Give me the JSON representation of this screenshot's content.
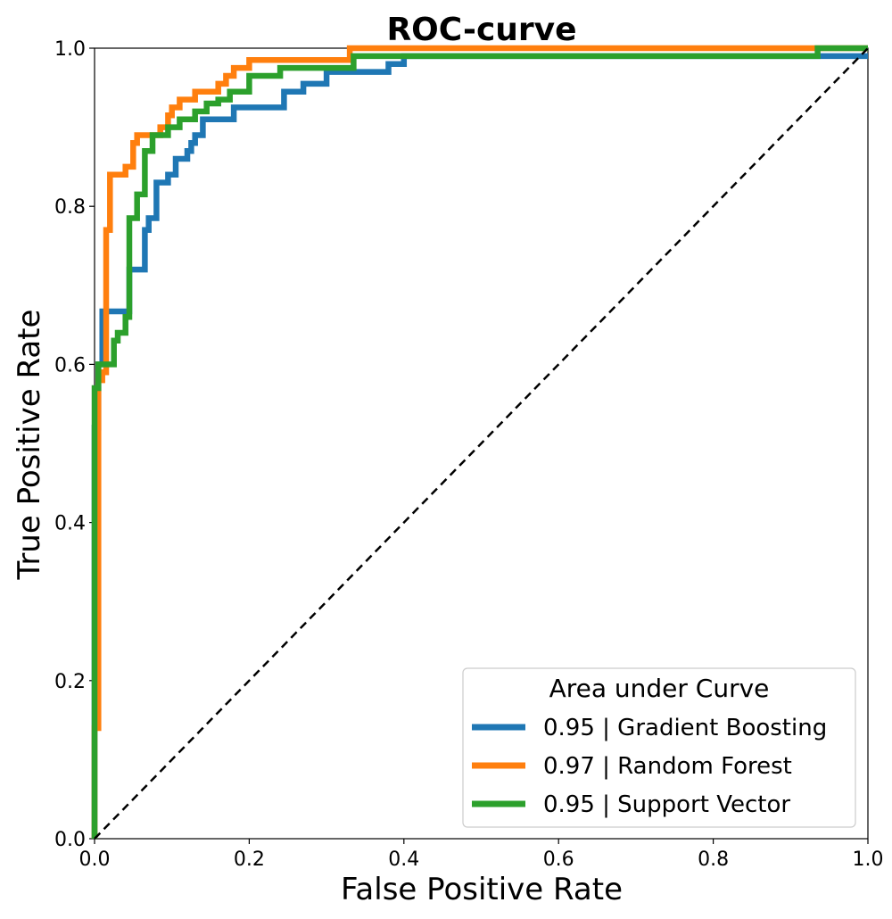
{
  "chart_data": {
    "type": "line",
    "title": "ROC-curve",
    "xlabel": "False Positive Rate",
    "ylabel": "True Positive Rate",
    "xlim": [
      0.0,
      1.0
    ],
    "ylim": [
      0.0,
      1.0
    ],
    "xticks": [
      "0.0",
      "0.2",
      "0.4",
      "0.6",
      "0.8",
      "1.0"
    ],
    "yticks": [
      "0.0",
      "0.2",
      "0.4",
      "0.6",
      "0.8",
      "1.0"
    ],
    "grid": false,
    "legend": {
      "title": "Area under Curve",
      "placement": "lower-right"
    },
    "series": [
      {
        "name": "0.95 | Gradient Boosting",
        "color": "#1f77b4",
        "x": [
          0.0,
          0.0,
          0.005,
          0.005,
          0.01,
          0.01,
          0.045,
          0.045,
          0.065,
          0.065,
          0.07,
          0.07,
          0.08,
          0.08,
          0.095,
          0.095,
          0.105,
          0.105,
          0.12,
          0.12,
          0.125,
          0.125,
          0.13,
          0.13,
          0.14,
          0.14,
          0.18,
          0.18,
          0.245,
          0.245,
          0.27,
          0.27,
          0.3,
          0.3,
          0.38,
          0.38,
          0.4,
          0.4,
          1.0
        ],
        "y": [
          0.0,
          0.52,
          0.52,
          0.6,
          0.6,
          0.667,
          0.667,
          0.72,
          0.72,
          0.77,
          0.77,
          0.785,
          0.785,
          0.83,
          0.83,
          0.84,
          0.84,
          0.86,
          0.86,
          0.87,
          0.87,
          0.88,
          0.88,
          0.89,
          0.89,
          0.91,
          0.91,
          0.925,
          0.925,
          0.945,
          0.945,
          0.955,
          0.955,
          0.97,
          0.97,
          0.98,
          0.98,
          0.99,
          0.99
        ]
      },
      {
        "name": "0.97 | Random Forest",
        "color": "#ff7f0e",
        "x": [
          0.0,
          0.0,
          0.005,
          0.005,
          0.01,
          0.01,
          0.015,
          0.015,
          0.02,
          0.02,
          0.04,
          0.04,
          0.05,
          0.05,
          0.055,
          0.055,
          0.085,
          0.085,
          0.095,
          0.095,
          0.1,
          0.1,
          0.11,
          0.11,
          0.13,
          0.13,
          0.16,
          0.16,
          0.17,
          0.17,
          0.18,
          0.18,
          0.2,
          0.2,
          0.33,
          0.33,
          0.385,
          0.385,
          1.0
        ],
        "y": [
          0.0,
          0.14,
          0.14,
          0.58,
          0.58,
          0.59,
          0.59,
          0.77,
          0.77,
          0.84,
          0.84,
          0.85,
          0.85,
          0.88,
          0.88,
          0.89,
          0.89,
          0.9,
          0.9,
          0.915,
          0.915,
          0.925,
          0.925,
          0.935,
          0.935,
          0.945,
          0.945,
          0.955,
          0.955,
          0.965,
          0.965,
          0.975,
          0.975,
          0.985,
          0.985,
          1.0,
          1.0,
          1.0,
          1.0
        ]
      },
      {
        "name": "0.95 | Support Vector",
        "color": "#2ca02c",
        "x": [
          0.0,
          0.0,
          0.005,
          0.005,
          0.01,
          0.01,
          0.025,
          0.025,
          0.03,
          0.03,
          0.04,
          0.04,
          0.045,
          0.045,
          0.055,
          0.055,
          0.065,
          0.065,
          0.075,
          0.075,
          0.095,
          0.095,
          0.11,
          0.11,
          0.13,
          0.13,
          0.145,
          0.145,
          0.16,
          0.16,
          0.175,
          0.175,
          0.2,
          0.2,
          0.24,
          0.24,
          0.335,
          0.335,
          0.935,
          0.935,
          1.0
        ],
        "y": [
          0.0,
          0.57,
          0.57,
          0.6,
          0.6,
          0.6,
          0.6,
          0.63,
          0.63,
          0.64,
          0.64,
          0.66,
          0.66,
          0.785,
          0.785,
          0.815,
          0.815,
          0.87,
          0.87,
          0.89,
          0.89,
          0.9,
          0.9,
          0.91,
          0.91,
          0.92,
          0.92,
          0.93,
          0.93,
          0.935,
          0.935,
          0.945,
          0.945,
          0.965,
          0.965,
          0.975,
          0.975,
          0.99,
          0.99,
          1.0,
          1.0
        ]
      }
    ],
    "reference_line": {
      "x": [
        0.0,
        1.0
      ],
      "y": [
        0.0,
        1.0
      ],
      "style": "dashed",
      "color": "#000000"
    }
  }
}
